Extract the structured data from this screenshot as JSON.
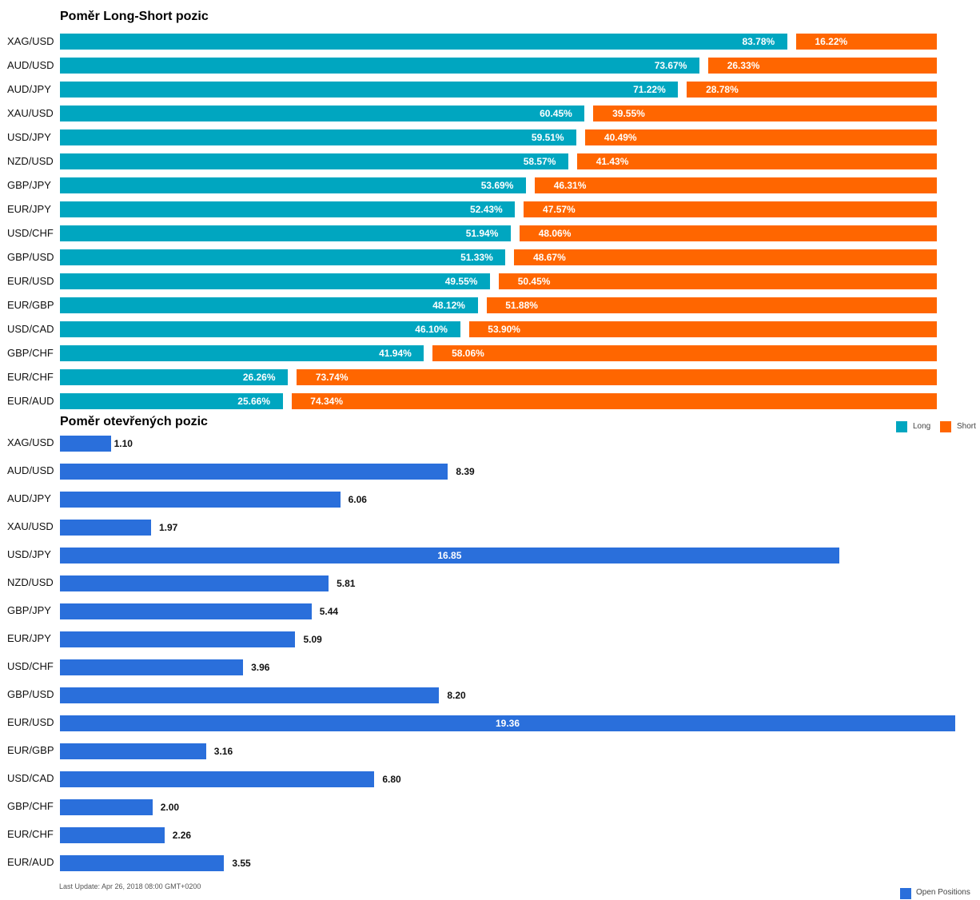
{
  "chart_data": [
    {
      "type": "bar",
      "orientation": "horizontal",
      "stacked": true,
      "title": "Poměr Long-Short pozic",
      "categories": [
        "XAG/USD",
        "AUD/USD",
        "AUD/JPY",
        "XAU/USD",
        "USD/JPY",
        "NZD/USD",
        "GBP/JPY",
        "EUR/JPY",
        "USD/CHF",
        "GBP/USD",
        "EUR/USD",
        "EUR/GBP",
        "USD/CAD",
        "GBP/CHF",
        "EUR/CHF",
        "EUR/AUD"
      ],
      "series": [
        {
          "name": "Long",
          "color": "#00a6c0",
          "values": [
            83.78,
            73.67,
            71.22,
            60.45,
            59.51,
            58.57,
            53.69,
            52.43,
            51.94,
            51.33,
            49.55,
            48.12,
            46.1,
            41.94,
            26.26,
            25.66
          ]
        },
        {
          "name": "Short",
          "color": "#ff6600",
          "values": [
            16.22,
            26.33,
            28.78,
            39.55,
            40.49,
            41.43,
            46.31,
            47.57,
            48.06,
            48.67,
            50.45,
            51.88,
            53.9,
            58.06,
            73.74,
            74.34
          ]
        }
      ],
      "value_labels": {
        "long": [
          "83.78%",
          "73.67%",
          "71.22%",
          "60.45%",
          "59.51%",
          "58.57%",
          "53.69%",
          "52.43%",
          "51.94%",
          "51.33%",
          "49.55%",
          "48.12%",
          "46.10%",
          "41.94%",
          "26.26%",
          "25.66%"
        ],
        "short": [
          "16.22%",
          "26.33%",
          "28.78%",
          "39.55%",
          "40.49%",
          "41.43%",
          "46.31%",
          "47.57%",
          "48.06%",
          "48.67%",
          "50.45%",
          "51.88%",
          "53.90%",
          "58.06%",
          "73.74%",
          "74.34%"
        ]
      },
      "xlim": [
        0,
        100
      ],
      "grid": false,
      "legend": "bottom-right"
    },
    {
      "type": "bar",
      "orientation": "horizontal",
      "title": "Poměr otevřených pozic",
      "categories": [
        "XAG/USD",
        "AUD/USD",
        "AUD/JPY",
        "XAU/USD",
        "USD/JPY",
        "NZD/USD",
        "GBP/JPY",
        "EUR/JPY",
        "USD/CHF",
        "GBP/USD",
        "EUR/USD",
        "EUR/GBP",
        "USD/CAD",
        "GBP/CHF",
        "EUR/CHF",
        "EUR/AUD"
      ],
      "series": [
        {
          "name": "Open Positions",
          "color": "#2a6fdb",
          "values": [
            1.1,
            8.39,
            6.06,
            1.97,
            16.85,
            5.81,
            5.44,
            5.09,
            3.96,
            8.2,
            19.36,
            3.16,
            6.8,
            2.0,
            2.26,
            3.55
          ]
        }
      ],
      "value_labels": [
        "1.10",
        "8.39",
        "6.06",
        "1.97",
        "16.85",
        "5.81",
        "5.44",
        "5.09",
        "3.96",
        "8.20",
        "19.36",
        "3.16",
        "6.80",
        "2.00",
        "2.26",
        "3.55"
      ],
      "xlim": [
        0,
        19.36
      ],
      "grid": false,
      "legend": "bottom-right"
    }
  ],
  "footer": "Last Update: Apr 26, 2018 08:00 GMT+0200"
}
